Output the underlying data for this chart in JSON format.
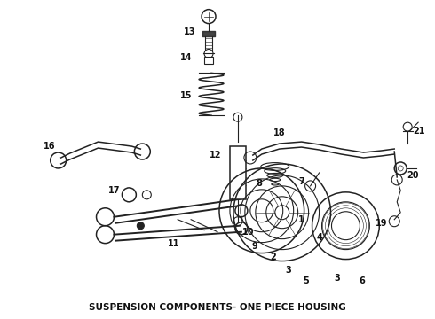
{
  "title": "SUSPENSION COMPONENTS- ONE PIECE HOUSING",
  "bg_color": "#ffffff",
  "line_color": "#222222",
  "label_color": "#111111",
  "title_fontsize": 7.5,
  "label_fontsize": 7.0
}
